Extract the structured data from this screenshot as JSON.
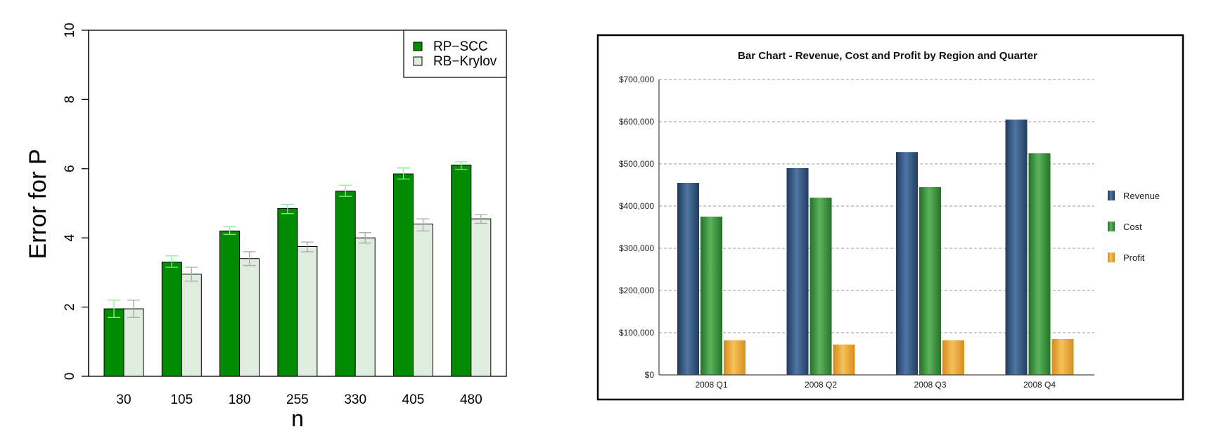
{
  "chart_data": [
    {
      "type": "bar",
      "title": "",
      "xlabel": "n",
      "ylabel": "Error for P",
      "ylim": [
        0,
        10
      ],
      "yticks": [
        "0",
        "2",
        "4",
        "6",
        "8",
        "10"
      ],
      "categories": [
        "30",
        "105",
        "180",
        "255",
        "330",
        "405",
        "480"
      ],
      "legend_position": "top-right",
      "grid": false,
      "series": [
        {
          "name": "RP−SCC",
          "color": "#008c00",
          "error_color": "#90ee90",
          "values": [
            1.95,
            3.3,
            4.2,
            4.85,
            5.35,
            5.85,
            6.1
          ],
          "error_low": [
            1.7,
            3.15,
            4.1,
            4.7,
            5.2,
            5.7,
            5.98
          ],
          "error_high": [
            2.2,
            3.48,
            4.32,
            4.97,
            5.52,
            6.02,
            6.2
          ]
        },
        {
          "name": "RB−Krylov",
          "color": "#dfeddf",
          "error_color": "#a8a8a8",
          "values": [
            1.95,
            2.95,
            3.4,
            3.75,
            4.0,
            4.4,
            4.55
          ],
          "error_low": [
            1.7,
            2.75,
            3.2,
            3.6,
            3.85,
            4.2,
            4.42
          ],
          "error_high": [
            2.2,
            3.15,
            3.6,
            3.88,
            4.15,
            4.55,
            4.67
          ]
        }
      ]
    },
    {
      "type": "bar",
      "title": "Bar Chart - Revenue, Cost and Profit by Region and Quarter",
      "xlabel": "",
      "ylabel": "",
      "ylim": [
        0,
        700000
      ],
      "yticks": [
        "$0",
        "$100,000",
        "$200,000",
        "$300,000",
        "$400,000",
        "$500,000",
        "$600,000",
        "$700,000"
      ],
      "categories": [
        "2008 Q1",
        "2008 Q2",
        "2008 Q3",
        "2008 Q4"
      ],
      "legend_position": "right",
      "grid": true,
      "series": [
        {
          "name": "Revenue",
          "color": "#34577d",
          "values": [
            455000,
            490000,
            528000,
            605000
          ]
        },
        {
          "name": "Cost",
          "color": "#3f923f",
          "values": [
            375000,
            420000,
            445000,
            525000
          ]
        },
        {
          "name": "Profit",
          "color": "#e6a030",
          "values": [
            82000,
            72000,
            82000,
            85000
          ]
        }
      ]
    }
  ]
}
